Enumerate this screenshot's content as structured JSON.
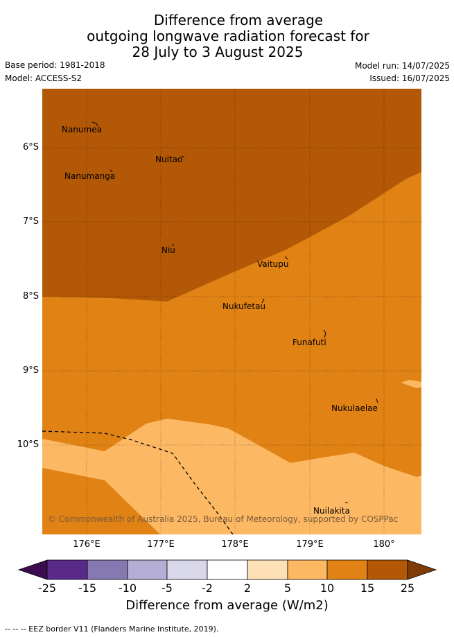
{
  "title": {
    "line1": "Difference from average",
    "line2": "outgoing longwave radiation forecast for",
    "line3": "28 July to 3 August 2025"
  },
  "meta": {
    "base_period": "Base period: 1981-2018",
    "model": "Model: ACCESS-S2",
    "model_run": "Model run: 14/07/2025",
    "issued": "Issued: 16/07/2025"
  },
  "axes": {
    "lat_labels": [
      "6°S",
      "7°S",
      "8°S",
      "9°S",
      "10°S"
    ],
    "lon_labels": [
      "176°E",
      "177°E",
      "178°E",
      "179°E",
      "180°"
    ]
  },
  "places": {
    "nanumea": "Nanumea",
    "nuitao": "Nuitao",
    "nanumanga": "Nanumanga",
    "niu": "Niu",
    "vaitupu": "Vaitupu",
    "nukufetau": "Nukufetau",
    "funafuti": "Funafuti",
    "nukulaelae": "Nukulaelae",
    "nuilakita": "Nuilakita"
  },
  "copyright": "© Commonwealth of Australia 2025, Bureau of Meteorology, supported by COSPPac",
  "colorbar": {
    "ticks": [
      "-25",
      "-15",
      "-10",
      "-5",
      "-2",
      "2",
      "5",
      "10",
      "15",
      "25"
    ],
    "colors": [
      "#3d0c4f",
      "#5a2a8a",
      "#8678b0",
      "#b4aed4",
      "#d8d8ea",
      "#ffffff",
      "#fee0b6",
      "#fdb863",
      "#e08214",
      "#b35806",
      "#7f3b08"
    ],
    "title": "Difference from average (W/m2)"
  },
  "footer": "--  --  -- EEZ border V11 (Flanders Marine Institute, 2019)."
}
